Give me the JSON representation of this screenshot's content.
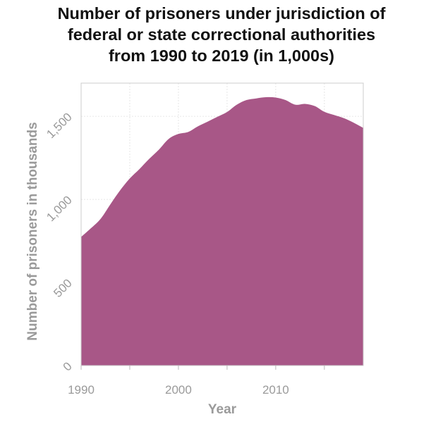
{
  "chart_data": {
    "type": "area",
    "title_lines": [
      "Number of prisoners under jurisdiction of",
      "federal or state correctional authorities",
      "from 1990 to 2019 (in 1,000s)"
    ],
    "xlabel": "Year",
    "ylabel": "Number of prisoners in thousands",
    "xlim": [
      1990,
      2019
    ],
    "ylim": [
      0,
      1700
    ],
    "x_ticks": [
      1990,
      1995,
      2000,
      2005,
      2010,
      2015
    ],
    "x_tick_labels": [
      "1990",
      "",
      "2000",
      "",
      "2010",
      ""
    ],
    "y_ticks": [
      0,
      500,
      1000,
      1500
    ],
    "y_tick_labels": [
      "0",
      "500",
      "1,000",
      "1,500"
    ],
    "grid": true,
    "fill_color": "#a85787",
    "series": [
      {
        "x": [
          1990,
          1991,
          1992,
          1993,
          1994,
          1995,
          1996,
          1997,
          1998,
          1999,
          2000,
          2001,
          2002,
          2003,
          2004,
          2005,
          2006,
          2007,
          2008,
          2009,
          2010,
          2011,
          2012,
          2013,
          2014,
          2015,
          2016,
          2017,
          2018,
          2019
        ],
        "values": [
          774,
          826,
          883,
          970,
          1054,
          1126,
          1183,
          1244,
          1300,
          1364,
          1394,
          1406,
          1440,
          1468,
          1497,
          1526,
          1570,
          1598,
          1608,
          1615,
          1613,
          1598,
          1570,
          1575,
          1562,
          1527,
          1508,
          1489,
          1462,
          1430
        ]
      }
    ]
  }
}
